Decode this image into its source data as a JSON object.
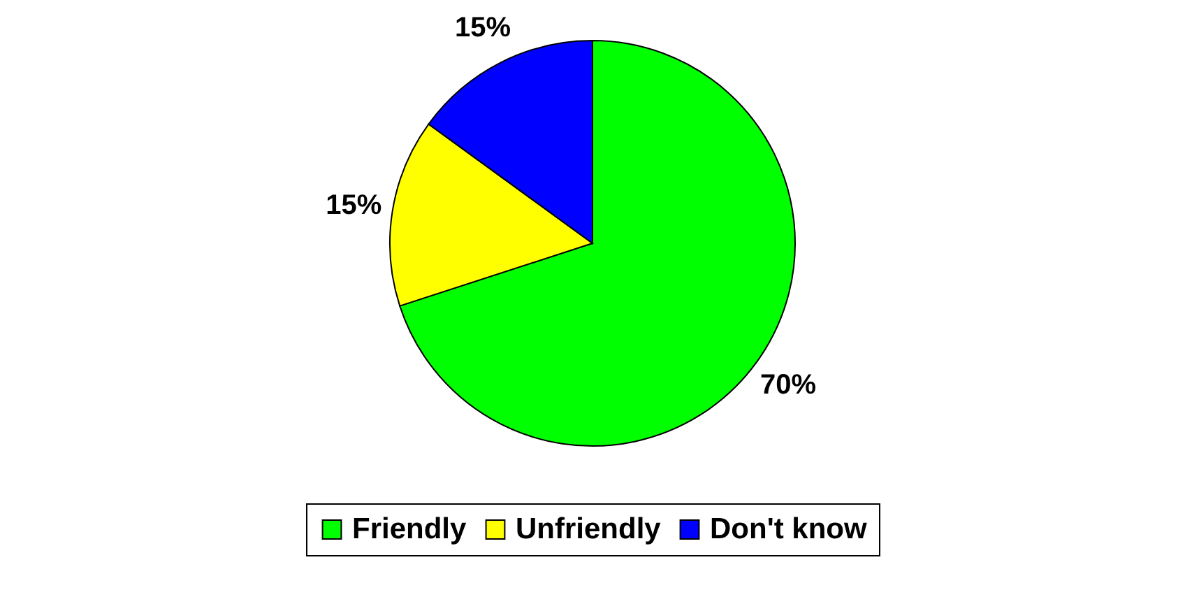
{
  "chart_data": {
    "type": "pie",
    "categories": [
      "Friendly",
      "Unfriendly",
      "Don't know"
    ],
    "values": [
      70,
      15,
      15
    ],
    "colors": [
      "#00ff00",
      "#ffff00",
      "#0000ff"
    ],
    "value_labels": [
      "70%",
      "15%",
      "15%"
    ],
    "legend": "bottom"
  }
}
